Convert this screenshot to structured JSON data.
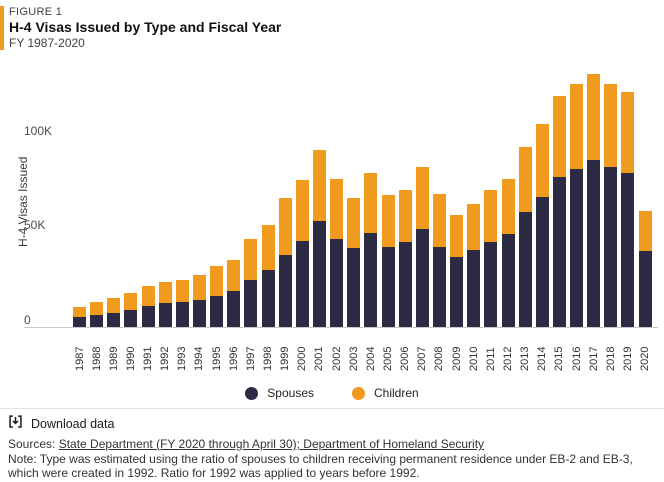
{
  "header": {
    "kicker": "FIGURE 1",
    "title": "H-4 Visas Issued by Type and Fiscal Year",
    "subtitle": "FY 1987-2020",
    "accent_color": "#F09B1E"
  },
  "chart_data": {
    "type": "bar",
    "stacked": true,
    "title": "H-4 Visas Issued by Type and Fiscal Year",
    "subtitle": "FY 1987-2020",
    "xlabel": "",
    "ylabel": "H-4 Visas Issued",
    "ylim": [
      0,
      140000
    ],
    "yticks": [
      "0",
      "50K",
      "100K"
    ],
    "ytick_values": [
      0,
      50000,
      100000
    ],
    "grid": false,
    "legend_position": "bottom",
    "categories": [
      "1987",
      "1988",
      "1989",
      "1990",
      "1991",
      "1992",
      "1993",
      "1994",
      "1995",
      "1996",
      "1997",
      "1998",
      "1999",
      "2000",
      "2001",
      "2002",
      "2003",
      "2004",
      "2005",
      "2006",
      "2007",
      "2008",
      "2009",
      "2010",
      "2011",
      "2012",
      "2013",
      "2014",
      "2015",
      "2016",
      "2017",
      "2018",
      "2019",
      "2020"
    ],
    "series": [
      {
        "name": "Spouses",
        "color": "#2D2A44",
        "values": [
          5500,
          6500,
          7500,
          9000,
          11000,
          12500,
          13000,
          14500,
          16500,
          19000,
          25000,
          30000,
          38000,
          45500,
          56000,
          46500,
          41500,
          49500,
          42000,
          45000,
          52000,
          42500,
          37000,
          40500,
          45000,
          49000,
          60500,
          68500,
          79000,
          83500,
          88000,
          84500,
          81500,
          40000
        ]
      },
      {
        "name": "Children",
        "color": "#F09B1E",
        "values": [
          5000,
          6500,
          8000,
          9000,
          10500,
          11500,
          12000,
          13000,
          15500,
          16500,
          21500,
          24000,
          30000,
          32000,
          37500,
          31500,
          26500,
          32000,
          27500,
          27500,
          32500,
          27500,
          22000,
          24500,
          27500,
          29000,
          34500,
          38500,
          43000,
          45000,
          45500,
          44000,
          42500,
          21500
        ]
      }
    ]
  },
  "footer": {
    "download_label": "Download data",
    "sources_prefix": "Sources: ",
    "sources_text": "State Department (FY 2020 through April 30); Department of Homeland Security",
    "note": "Note: Type was estimated using the ratio of spouses to children receiving permanent residence under EB-2 and EB-3, which were created in 1992. Ratio for 1992 was applied to years before 1992."
  }
}
